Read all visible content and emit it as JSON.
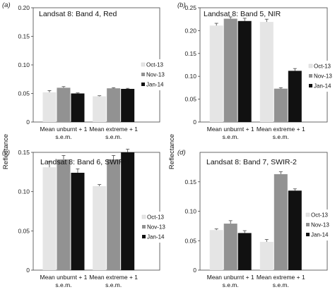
{
  "ylabel": "Reflectance",
  "legend_entries": [
    "Oct-13",
    "Nov-13",
    "Jan-14"
  ],
  "colors": {
    "Oct-13": "#e5e5e5",
    "Nov-13": "#929292",
    "Jan-14": "#111111",
    "axis": "#444444",
    "errorbar": "#444444"
  },
  "chart_data": [
    {
      "type": "bar",
      "panel": "(a)",
      "title": "Landsat 8: Band 4, Red",
      "categories": [
        [
          "Mean unburnt + 1",
          "s.e.m."
        ],
        [
          "Mean extreme + 1",
          "s.e.m."
        ]
      ],
      "ylim": [
        0,
        0.2
      ],
      "yticks": [
        "0",
        "0.05",
        "0.10",
        "0.15",
        "0.20"
      ],
      "legend_position": "right",
      "series": [
        {
          "name": "Oct-13",
          "values": [
            0.052,
            0.045
          ],
          "errors": [
            0.003,
            0.001
          ]
        },
        {
          "name": "Nov-13",
          "values": [
            0.06,
            0.059
          ],
          "errors": [
            0.002,
            0.001
          ]
        },
        {
          "name": "Jan-14",
          "values": [
            0.05,
            0.058
          ],
          "errors": [
            0.001,
            0.001
          ]
        }
      ]
    },
    {
      "type": "bar",
      "panel": "(b)",
      "title": "Landsat 8: Band 5, NIR",
      "categories": [
        [
          "Mean unburnt + 1",
          "s.e.m."
        ],
        [
          "Mean extreme + 1",
          "s.e.m."
        ]
      ],
      "ylim": [
        0,
        0.25
      ],
      "yticks": [
        "0",
        "0.05",
        "0.10",
        "0.15",
        "0.20",
        "0.25"
      ],
      "legend_position": "right",
      "series": [
        {
          "name": "Oct-13",
          "values": [
            0.211,
            0.219
          ],
          "errors": [
            0.005,
            0.006
          ]
        },
        {
          "name": "Nov-13",
          "values": [
            0.226,
            0.073
          ],
          "errors": [
            0.004,
            0.002
          ]
        },
        {
          "name": "Jan-14",
          "values": [
            0.221,
            0.112
          ],
          "errors": [
            0.006,
            0.005
          ]
        }
      ]
    },
    {
      "type": "bar",
      "panel": "(c)",
      "title": "Landsat 8: Band 6, SWIR-1",
      "categories": [
        [
          "Mean unburnt + 1",
          "s.e.m."
        ],
        [
          "Mean extreme + 1",
          "s.e.m."
        ]
      ],
      "ylim": [
        0,
        0.15
      ],
      "yticks": [
        "0",
        "0.05",
        "0.10",
        "0.15"
      ],
      "legend_position": "left",
      "series": [
        {
          "name": "Oct-13",
          "values": [
            0.131,
            0.107
          ],
          "errors": [
            0.007,
            0.002
          ]
        },
        {
          "name": "Nov-13",
          "values": [
            0.141,
            0.141
          ],
          "errors": [
            0.005,
            0.005
          ]
        },
        {
          "name": "Jan-14",
          "values": [
            0.124,
            0.15
          ],
          "errors": [
            0.005,
            0.004
          ]
        }
      ]
    },
    {
      "type": "bar",
      "panel": "(d)",
      "title": "Landsat 8: Band 7, SWIR-2",
      "categories": [
        [
          "Mean unburnt + 1",
          "s.e.m."
        ],
        [
          "Mean extreme + 1",
          "s.e.m."
        ]
      ],
      "ylim": [
        0,
        0.2
      ],
      "yticks": [
        "0",
        "0.05",
        "0.10",
        "0.15"
      ],
      "legend_position": "right",
      "series": [
        {
          "name": "Oct-13",
          "values": [
            0.068,
            0.048
          ],
          "errors": [
            0.002,
            0.004
          ]
        },
        {
          "name": "Nov-13",
          "values": [
            0.079,
            0.163
          ],
          "errors": [
            0.005,
            0.004
          ]
        },
        {
          "name": "Jan-14",
          "values": [
            0.063,
            0.135
          ],
          "errors": [
            0.004,
            0.003
          ]
        }
      ]
    }
  ]
}
